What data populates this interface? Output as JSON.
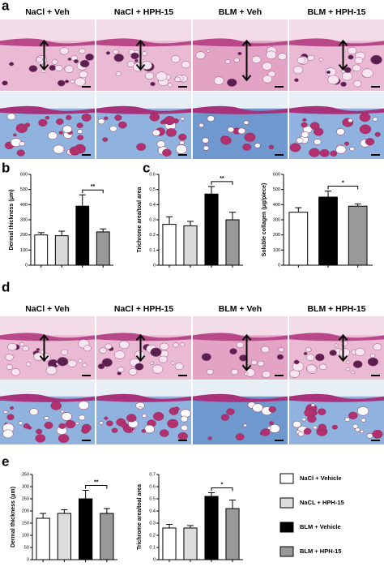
{
  "panel_labels": [
    "a",
    "b",
    "c",
    "d",
    "e"
  ],
  "panel_a_headers": [
    "NaCl + Veh",
    "NaCl + HPH-15",
    "BLM + Veh",
    "BLM + HPH-15"
  ],
  "panel_d_headers": [
    "NaCl + Veh",
    "NaCl + HPH-15",
    "BLM + Veh",
    "BLM + HPH-15"
  ],
  "chart_data": [
    {
      "type": "bar",
      "y_label": "Dermal thickness (μm)",
      "values": [
        200,
        195,
        390,
        220
      ],
      "errors": [
        15,
        30,
        75,
        20
      ],
      "colors": [
        "#ffffff",
        "#d9d9d9",
        "#000000",
        "#999999"
      ],
      "ylim": [
        0,
        600
      ],
      "yticks": [
        0,
        100,
        200,
        300,
        400,
        500,
        600
      ],
      "significance": "**"
    },
    {
      "type": "bar",
      "y_label": "Trichrome area/toal area",
      "values": [
        0.27,
        0.26,
        0.47,
        0.3
      ],
      "errors": [
        0.05,
        0.03,
        0.05,
        0.05
      ],
      "colors": [
        "#ffffff",
        "#d9d9d9",
        "#000000",
        "#999999"
      ],
      "ylim": [
        0,
        0.6
      ],
      "yticks": [
        0,
        0.1,
        0.2,
        0.3,
        0.4,
        0.5,
        0.6
      ],
      "significance": "**"
    },
    {
      "type": "bar",
      "y_label": "Soluble collagen (μg/piece)",
      "values": [
        350,
        450,
        390
      ],
      "errors": [
        30,
        40,
        15
      ],
      "colors": [
        "#ffffff",
        "#000000",
        "#999999"
      ],
      "ylim": [
        0,
        600
      ],
      "yticks": [
        0,
        100,
        200,
        300,
        400,
        500,
        600
      ],
      "significance": "*"
    },
    {
      "type": "bar",
      "y_label": "Dermal thickness (μm)",
      "values": [
        170,
        190,
        250,
        190
      ],
      "errors": [
        20,
        15,
        35,
        20
      ],
      "colors": [
        "#ffffff",
        "#dcdcdc",
        "#000000",
        "#999999"
      ],
      "ylim": [
        0,
        350
      ],
      "yticks": [
        0,
        50,
        100,
        150,
        200,
        250,
        300,
        350
      ],
      "significance": "**"
    },
    {
      "type": "bar",
      "y_label": "Trichrome area/toal area",
      "values": [
        0.26,
        0.26,
        0.52,
        0.42
      ],
      "errors": [
        0.03,
        0.02,
        0.03,
        0.07
      ],
      "colors": [
        "#ffffff",
        "#dcdcdc",
        "#000000",
        "#999999"
      ],
      "ylim": [
        0,
        0.7
      ],
      "yticks": [
        0,
        0.1,
        0.2,
        0.3,
        0.4,
        0.5,
        0.6,
        0.7
      ],
      "significance": "*"
    }
  ],
  "legend": [
    {
      "name": "NaCl + Vehicle",
      "color": "#ffffff"
    },
    {
      "name": "NaCL + HPH-15",
      "color": "#dcdcdc"
    },
    {
      "name": "BLM + Vehicle",
      "color": "#000000"
    },
    {
      "name": "BLM + HPH-15",
      "color": "#999999"
    }
  ]
}
